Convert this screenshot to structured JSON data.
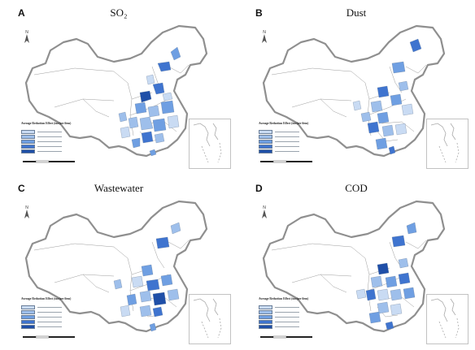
{
  "colors": {
    "outline": "#8f8f8f",
    "province": "#9c9c9c",
    "class_1": "#c9dbf3",
    "class_2": "#9ebfeb",
    "class_3": "#6f9fe2",
    "class_4": "#3f74cf",
    "class_5": "#1f4fa8"
  },
  "panels": [
    {
      "letter": "A",
      "title": "SO₂",
      "legend_title": "Average Reduction Effect (ton/per firm)",
      "legend_classes": 5
    },
    {
      "letter": "B",
      "title": "Dust",
      "legend_title": "Average Reduction Effect (ton/per firm)",
      "legend_classes": 5
    },
    {
      "letter": "C",
      "title": "Wastewater",
      "legend_title": "Average Reduction Effect (ton/per firm)",
      "legend_classes": 5
    },
    {
      "letter": "D",
      "title": "COD",
      "legend_title": "Average Reduction Effect (ton/per firm)",
      "legend_classes": 5
    }
  ],
  "icons": {
    "north_arrow": "north-arrow-icon"
  }
}
